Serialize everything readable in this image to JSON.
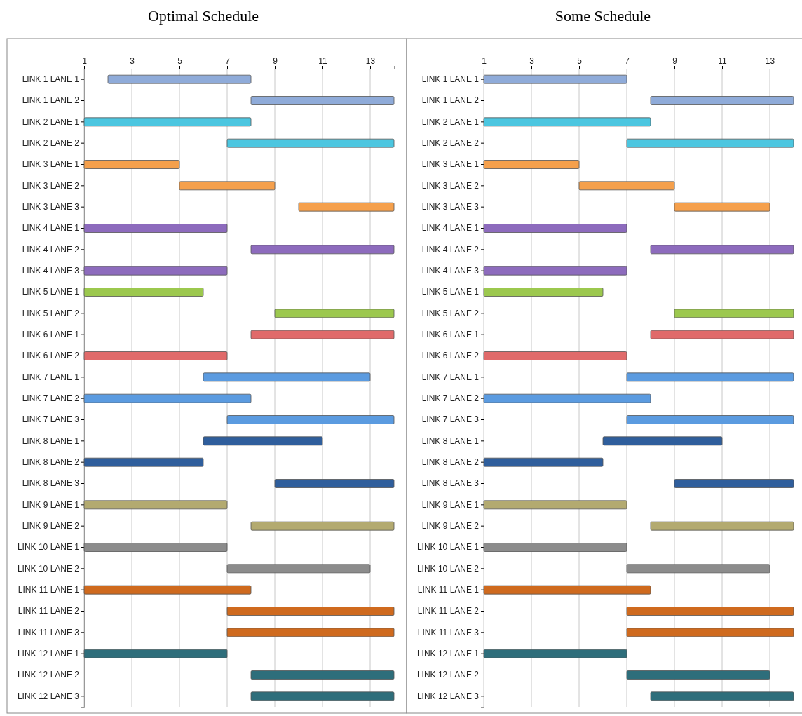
{
  "chart_data": [
    {
      "type": "bar",
      "orientation": "horizontal",
      "title": "Optimal Schedule",
      "grid": "x",
      "xlim": [
        1,
        14
      ],
      "xticks": [
        1,
        3,
        5,
        7,
        9,
        11,
        13
      ],
      "categories": [
        "LINK 1 LANE 1",
        "LINK 1 LANE 2",
        "LINK 2 LANE 1",
        "LINK 2 LANE 2",
        "LINK 3 LANE 1",
        "LINK 3 LANE 2",
        "LINK 3 LANE 3",
        "LINK 4 LANE 1",
        "LINK 4 LANE 2",
        "LINK 4 LANE 3",
        "LINK 5 LANE 1",
        "LINK 5 LANE 2",
        "LINK 6 LANE 1",
        "LINK 6 LANE 2",
        "LINK 7 LANE 1",
        "LINK 7 LANE 2",
        "LINK 7 LANE 3",
        "LINK 8 LANE 1",
        "LINK 8 LANE 2",
        "LINK 8 LANE 3",
        "LINK 9 LANE 1",
        "LINK 9 LANE 2",
        "LINK 10 LANE 1",
        "LINK 10 LANE 2",
        "LINK 11 LANE 1",
        "LINK 11 LANE 2",
        "LINK 11 LANE 3",
        "LINK 12 LANE 1",
        "LINK 12 LANE 2",
        "LINK 12 LANE 3"
      ],
      "base": [
        2,
        8,
        1,
        7,
        1,
        5,
        10,
        1,
        8,
        1,
        1,
        9,
        8,
        1,
        6,
        1,
        7,
        6,
        1,
        9,
        1,
        8,
        1,
        7,
        1,
        7,
        7,
        1,
        8,
        8
      ],
      "values": [
        6,
        6,
        7,
        7,
        4,
        4,
        4,
        6,
        6,
        6,
        5,
        5,
        6,
        6,
        7,
        7,
        7,
        5,
        5,
        5,
        6,
        6,
        6,
        6,
        7,
        7,
        7,
        6,
        6,
        6
      ],
      "colors": [
        "#8fabd9",
        "#8fabd9",
        "#4cc6e0",
        "#4cc6e0",
        "#f5a04c",
        "#f5a04c",
        "#f5a04c",
        "#8d6bbd",
        "#8d6bbd",
        "#8d6bbd",
        "#9cc84e",
        "#9cc84e",
        "#e06a6a",
        "#e06a6a",
        "#5b9be0",
        "#5b9be0",
        "#5b9be0",
        "#2f5e9c",
        "#2f5e9c",
        "#2f5e9c",
        "#b3aa70",
        "#b3aa70",
        "#8c8c8c",
        "#8c8c8c",
        "#cf6a1e",
        "#cf6a1e",
        "#cf6a1e",
        "#2e6e7b",
        "#2e6e7b",
        "#2e6e7b"
      ]
    },
    {
      "type": "bar",
      "orientation": "horizontal",
      "title": "Some Schedule",
      "grid": "x",
      "xlim": [
        1,
        14
      ],
      "xticks": [
        1,
        3,
        5,
        7,
        9,
        11,
        13
      ],
      "categories": [
        "LINK 1 LANE 1",
        "LINK 1 LANE 2",
        "LINK 2 LANE 1",
        "LINK 2 LANE 2",
        "LINK 3 LANE 1",
        "LINK 3 LANE 2",
        "LINK 3 LANE 3",
        "LINK 4 LANE 1",
        "LINK 4 LANE 2",
        "LINK 4 LANE 3",
        "LINK 5 LANE 1",
        "LINK 5 LANE 2",
        "LINK 6 LANE 1",
        "LINK 6 LANE 2",
        "LINK 7 LANE 1",
        "LINK 7 LANE 2",
        "LINK 7 LANE 3",
        "LINK 8 LANE 1",
        "LINK 8 LANE 2",
        "LINK 8 LANE 3",
        "LINK 9 LANE 1",
        "LINK 9 LANE 2",
        "LINK 10 LANE 1",
        "LINK 10 LANE 2",
        "LINK 11 LANE 1",
        "LINK 11 LANE 2",
        "LINK 11 LANE 3",
        "LINK 12 LANE 1",
        "LINK 12 LANE 2",
        "LINK 12 LANE 3"
      ],
      "base": [
        1,
        8,
        1,
        7,
        1,
        5,
        9,
        1,
        8,
        1,
        1,
        9,
        8,
        1,
        7,
        1,
        7,
        6,
        1,
        9,
        1,
        8,
        1,
        7,
        1,
        7,
        7,
        1,
        7,
        8
      ],
      "values": [
        6,
        6,
        7,
        7,
        4,
        4,
        4,
        6,
        6,
        6,
        5,
        5,
        6,
        6,
        7,
        7,
        7,
        5,
        5,
        5,
        6,
        6,
        6,
        6,
        7,
        7,
        7,
        6,
        6,
        6
      ],
      "colors": [
        "#8fabd9",
        "#8fabd9",
        "#4cc6e0",
        "#4cc6e0",
        "#f5a04c",
        "#f5a04c",
        "#f5a04c",
        "#8d6bbd",
        "#8d6bbd",
        "#8d6bbd",
        "#9cc84e",
        "#9cc84e",
        "#e06a6a",
        "#e06a6a",
        "#5b9be0",
        "#5b9be0",
        "#5b9be0",
        "#2f5e9c",
        "#2f5e9c",
        "#2f5e9c",
        "#b3aa70",
        "#b3aa70",
        "#8c8c8c",
        "#8c8c8c",
        "#cf6a1e",
        "#cf6a1e",
        "#cf6a1e",
        "#2e6e7b",
        "#2e6e7b",
        "#2e6e7b"
      ]
    }
  ]
}
